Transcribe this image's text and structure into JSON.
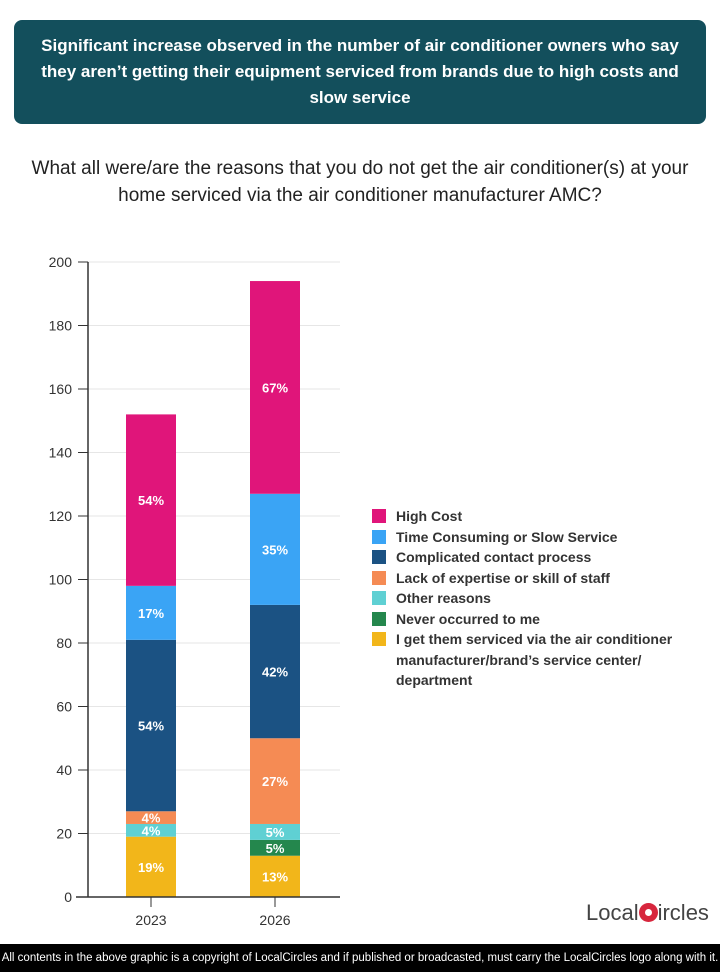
{
  "banner": "Significant increase observed in the number of air conditioner owners who say they aren’t getting their equipment serviced from brands due to high costs and slow service",
  "question": "What all were/are the reasons that you do not get the air conditioner(s) at your home serviced via the air conditioner manufacturer AMC?",
  "chart_data": {
    "type": "bar",
    "stacked": true,
    "categories": [
      "2023",
      "2026"
    ],
    "ylim": [
      0,
      200
    ],
    "yticks": [
      0,
      20,
      40,
      60,
      80,
      100,
      120,
      140,
      160,
      180,
      200
    ],
    "grid": true,
    "legend_position": "right",
    "series": [
      {
        "name": "I get them serviced via the air conditioner manufacturer/brand’s service center/ department",
        "color": "#f2b61a",
        "values": [
          19,
          13
        ]
      },
      {
        "name": "Never occurred to me",
        "color": "#24874d",
        "values": [
          0,
          5
        ]
      },
      {
        "name": "Other reasons",
        "color": "#5fd0d3",
        "values": [
          4,
          5
        ]
      },
      {
        "name": "Lack of expertise or skill of staff",
        "color": "#f58b54",
        "values": [
          4,
          27
        ]
      },
      {
        "name": "Complicated contact process",
        "color": "#1b5283",
        "values": [
          54,
          42
        ]
      },
      {
        "name": "Time Consuming or Slow Service",
        "color": "#3aa4f5",
        "values": [
          17,
          35
        ]
      },
      {
        "name": "High Cost",
        "color": "#e0157a",
        "values": [
          54,
          67
        ]
      }
    ]
  },
  "legend_order": [
    6,
    5,
    4,
    3,
    2,
    1,
    0
  ],
  "logo": {
    "text_left": "Local",
    "text_right": "ircles"
  },
  "footer": "All contents in the above graphic is a copyright of LocalCircles and if published or broadcasted, must carry the LocalCircles logo along with it."
}
